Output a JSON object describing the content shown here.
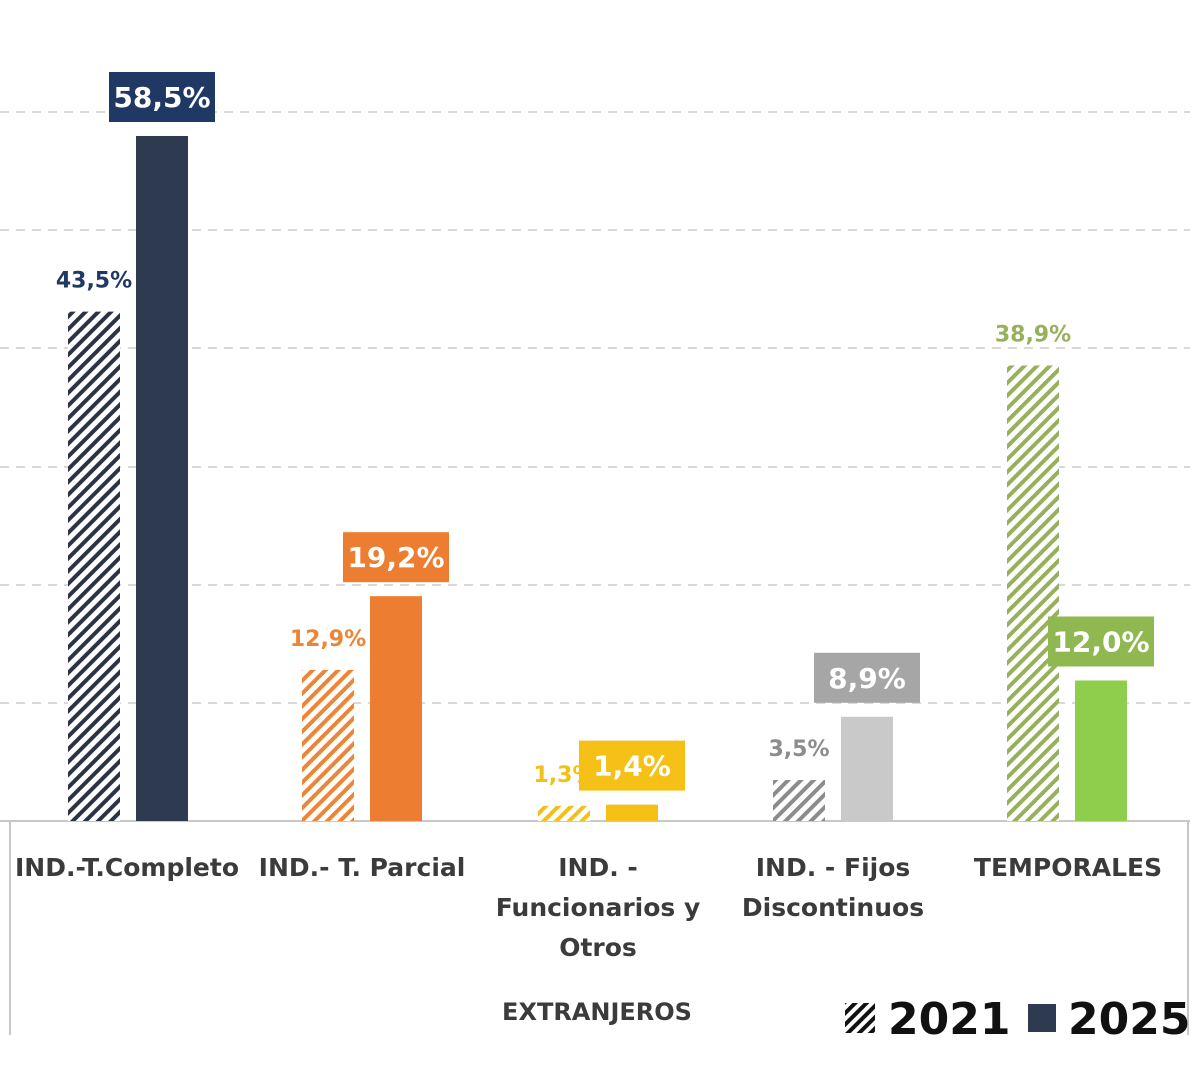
{
  "chart_data": {
    "type": "bar",
    "categories": [
      [
        "IND.-T.Completo"
      ],
      [
        "IND.- T. Parcial"
      ],
      [
        "IND. -",
        "Funcionarios y",
        "Otros"
      ],
      [
        "IND. - Fijos",
        "Discontinuos"
      ],
      [
        "TEMPORALES"
      ]
    ],
    "series": [
      {
        "name": "2021",
        "values": [
          43.5,
          12.9,
          1.3,
          3.5,
          38.9
        ],
        "labels": [
          "43,5%",
          "12,9%",
          "1,3%",
          "3,5%",
          "38,9%"
        ],
        "pattern": "hatched"
      },
      {
        "name": "2025",
        "values": [
          58.5,
          19.2,
          1.4,
          8.9,
          12.0
        ],
        "labels": [
          "58,5%",
          "19,2%",
          "1,4%",
          "8,9%",
          "12,0%"
        ],
        "pattern": "solid"
      }
    ],
    "colors_2021": [
      "#2b3447",
      "#ed8537",
      "#f2c117",
      "#8c8c8c",
      "#97b05c"
    ],
    "colors_2025": [
      "#2d3a50",
      "#ed7d31",
      "#f5c116",
      "#c9c9c9",
      "#8fce4c"
    ],
    "label_box_colors_2025": [
      "#1f3864",
      "#ed7d31",
      "#f5c116",
      "#a6a6a6",
      "#8fb850"
    ],
    "label_colors_2021": [
      "#1f3864",
      "#ed8537",
      "#f2c117",
      "#8c8c8c",
      "#97b05c"
    ],
    "ylim": [
      0,
      62
    ],
    "grid": true,
    "group_label": "EXTRANJEROS",
    "legend": {
      "position": "bottom-right",
      "items": [
        "2021",
        "2025"
      ]
    }
  }
}
